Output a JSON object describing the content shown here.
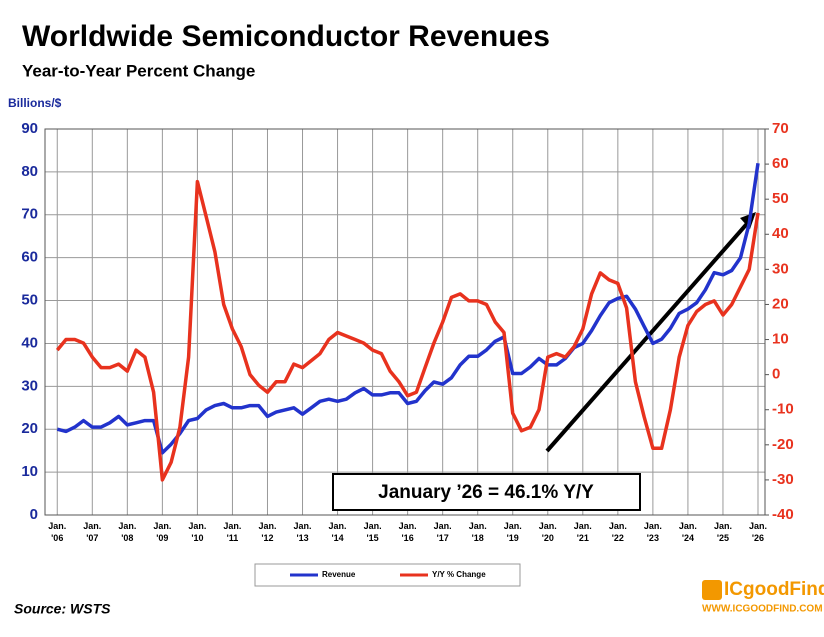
{
  "chart_data": {
    "type": "line",
    "title": "Worldwide Semiconductor Revenues",
    "subtitle": "Year-to-Year Percent Change",
    "ylabel": "Billions/$",
    "annotation": "January ’26 = 46.1% Y/Y",
    "source": "Source: WSTS",
    "logo": "ICgoodFind",
    "logo_url": "WWW.ICGOODFIND.COM",
    "x": [
      2006,
      2006.25,
      2006.5,
      2006.75,
      2007,
      2007.25,
      2007.5,
      2007.75,
      2008,
      2008.25,
      2008.5,
      2008.75,
      2009,
      2009.25,
      2009.5,
      2009.75,
      2010,
      2010.25,
      2010.5,
      2010.75,
      2011,
      2011.25,
      2011.5,
      2011.75,
      2012,
      2012.25,
      2012.5,
      2012.75,
      2013,
      2013.25,
      2013.5,
      2013.75,
      2014,
      2014.25,
      2014.5,
      2014.75,
      2015,
      2015.25,
      2015.5,
      2015.75,
      2016,
      2016.25,
      2016.5,
      2016.75,
      2017,
      2017.25,
      2017.5,
      2017.75,
      2018,
      2018.25,
      2018.5,
      2018.75,
      2019,
      2019.25,
      2019.5,
      2019.75,
      2020,
      2020.25,
      2020.5,
      2020.75,
      2021,
      2021.25,
      2021.5,
      2021.75,
      2022,
      2022.25,
      2022.5,
      2022.75,
      2023,
      2023.25,
      2023.5,
      2023.75,
      2024,
      2024.25,
      2024.5,
      2024.75,
      2025,
      2025.25,
      2025.5,
      2025.75,
      2026
    ],
    "series": [
      {
        "name": "Revenue",
        "color": "#2233cc",
        "axis": "y",
        "values": [
          20,
          19.5,
          20.5,
          22,
          20.5,
          20.5,
          21.5,
          23,
          21,
          21.5,
          22,
          22,
          14.5,
          16.5,
          19,
          22,
          22.5,
          24.5,
          25.5,
          26,
          25,
          25,
          25.5,
          25.5,
          23,
          24,
          24.5,
          25,
          23.5,
          25,
          26.5,
          27,
          26.5,
          27,
          28.5,
          29.5,
          28,
          28,
          28.5,
          28.5,
          26,
          26.5,
          29,
          31,
          30.5,
          32,
          35,
          37,
          37,
          38.5,
          40.5,
          41.5,
          33,
          33,
          34.5,
          36.5,
          35,
          35,
          36.5,
          39,
          40,
          43,
          46.5,
          49.5,
          50.5,
          51,
          48,
          44,
          40,
          41,
          43.5,
          47,
          48,
          49.5,
          52.5,
          56.5,
          56,
          57,
          60,
          68,
          82
        ]
      },
      {
        "name": "Y/Y % Change",
        "color": "#e8321e",
        "axis": "y2",
        "values": [
          7,
          10,
          10,
          9,
          5,
          2,
          2,
          3,
          1,
          7,
          5,
          -5,
          -30,
          -25,
          -15,
          5,
          55,
          45,
          35,
          20,
          13,
          8,
          0,
          -3,
          -5,
          -2,
          -2,
          3,
          2,
          4,
          6,
          10,
          12,
          11,
          10,
          9,
          7,
          6,
          1,
          -2,
          -6,
          -5,
          2,
          9,
          15,
          22,
          23,
          21,
          21,
          20,
          15,
          12,
          -11,
          -16,
          -15,
          -10,
          5,
          6,
          5,
          8,
          13,
          23,
          29,
          27,
          26,
          19,
          -2,
          -12,
          -21,
          -21,
          -10,
          5,
          14,
          18,
          20,
          21,
          17,
          20,
          25,
          30,
          46.1
        ]
      }
    ],
    "xlim": [
      2005.65,
      2026.2
    ],
    "xticks": [
      {
        "value": 2006,
        "label": "Jan. '06"
      },
      {
        "value": 2007,
        "label": "Jan. '07"
      },
      {
        "value": 2008,
        "label": "Jan. '08"
      },
      {
        "value": 2009,
        "label": "Jan. '09"
      },
      {
        "value": 2010,
        "label": "Jan. '10"
      },
      {
        "value": 2011,
        "label": "Jan. '11"
      },
      {
        "value": 2012,
        "label": "Jan. '12"
      },
      {
        "value": 2013,
        "label": "Jan. '13"
      },
      {
        "value": 2014,
        "label": "Jan. '14"
      },
      {
        "value": 2015,
        "label": "Jan. '15"
      },
      {
        "value": 2016,
        "label": "Jan. '16"
      },
      {
        "value": 2017,
        "label": "Jan. '17"
      },
      {
        "value": 2018,
        "label": "Jan. '18"
      },
      {
        "value": 2019,
        "label": "Jan. '19"
      },
      {
        "value": 2020,
        "label": "Jan. '20"
      },
      {
        "value": 2021,
        "label": "Jan. '21"
      },
      {
        "value": 2022,
        "label": "Jan. '22"
      },
      {
        "value": 2023,
        "label": "Jan. '23"
      },
      {
        "value": 2024,
        "label": "Jan. '24"
      },
      {
        "value": 2025,
        "label": "Jan. '25"
      },
      {
        "value": 2026,
        "label": "Jan. '26"
      }
    ],
    "ylim": [
      0,
      90
    ],
    "yticks": [
      0,
      10,
      20,
      30,
      40,
      50,
      60,
      70,
      80,
      90
    ],
    "y2lim": [
      -40,
      70
    ],
    "y2ticks": [
      -40,
      -30,
      -20,
      -10,
      0,
      10,
      20,
      30,
      40,
      50,
      60,
      70
    ],
    "grid": true
  }
}
